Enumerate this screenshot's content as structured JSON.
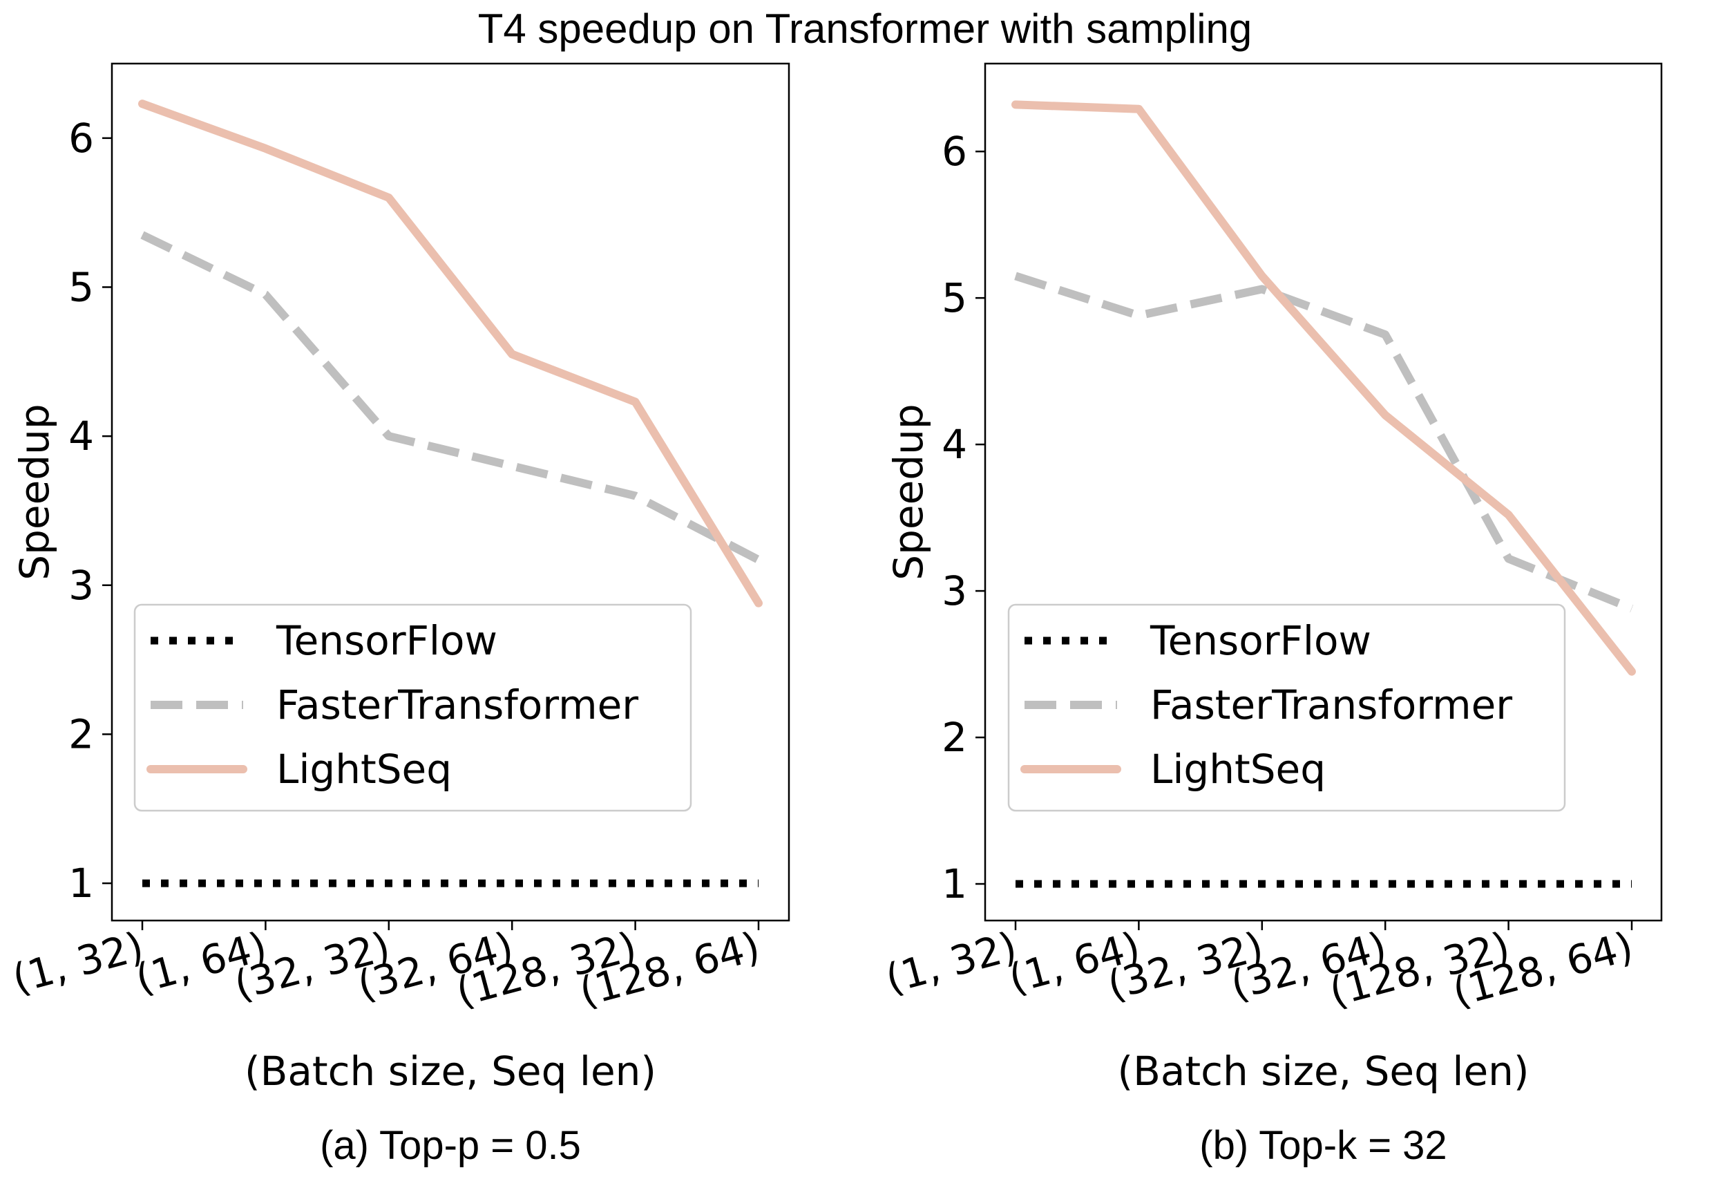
{
  "title": "T4 speedup on Transformer with sampling",
  "colors": {
    "tensorflow": "#000000",
    "fastertransformer": "#bfbfbf",
    "lightseq": "#ebbfae"
  },
  "chart_data": [
    {
      "type": "line",
      "caption": "(a) Top-p = 0.5",
      "xlabel": "(Batch size, Seq len)",
      "ylabel": "Speedup",
      "categories": [
        "(1, 32)",
        "(1, 64)",
        "(32, 32)",
        "(32, 64)",
        "(128, 32)",
        "(128, 64)"
      ],
      "ylim": [
        0.75,
        6.5
      ],
      "yticks": [
        1,
        2,
        3,
        4,
        5,
        6
      ],
      "legend_position": "center-left",
      "series": [
        {
          "name": "TensorFlow",
          "style": "dotted",
          "values": [
            1,
            1,
            1,
            1,
            1,
            1
          ]
        },
        {
          "name": "FasterTransformer",
          "style": "dashed",
          "values": [
            5.35,
            4.95,
            4.0,
            3.8,
            3.6,
            3.17
          ]
        },
        {
          "name": "LightSeq",
          "style": "solid",
          "values": [
            6.23,
            5.93,
            5.6,
            4.55,
            4.23,
            2.88
          ]
        }
      ]
    },
    {
      "type": "line",
      "caption": "(b) Top-k = 32",
      "xlabel": "(Batch size, Seq len)",
      "ylabel": "Speedup",
      "categories": [
        "(1, 32)",
        "(1, 64)",
        "(32, 32)",
        "(32, 64)",
        "(128, 32)",
        "(128, 64)"
      ],
      "ylim": [
        0.75,
        6.6
      ],
      "yticks": [
        1,
        2,
        3,
        4,
        5,
        6
      ],
      "legend_position": "center-left",
      "series": [
        {
          "name": "TensorFlow",
          "style": "dotted",
          "values": [
            1,
            1,
            1,
            1,
            1,
            1
          ]
        },
        {
          "name": "FasterTransformer",
          "style": "dashed",
          "values": [
            5.15,
            4.88,
            5.06,
            4.75,
            3.22,
            2.88
          ]
        },
        {
          "name": "LightSeq",
          "style": "solid",
          "values": [
            6.32,
            6.29,
            5.15,
            4.2,
            3.52,
            2.45
          ]
        }
      ]
    }
  ]
}
